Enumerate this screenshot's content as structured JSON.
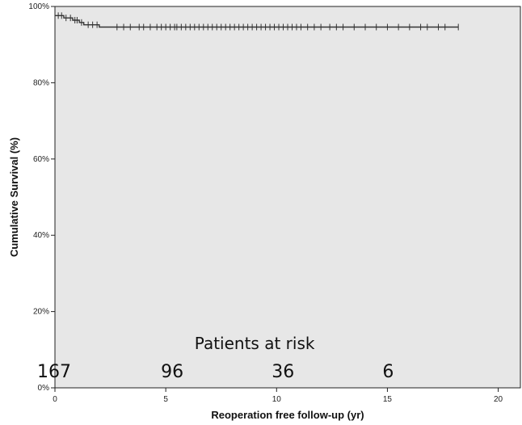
{
  "chart_data": {
    "type": "line",
    "title": "",
    "xlabel": "Reoperation free follow-up (yr)",
    "ylabel": "Cumulative Survival (%)",
    "xlim": [
      0,
      21
    ],
    "ylim": [
      0,
      100
    ],
    "x_ticks": [
      0,
      5,
      10,
      15,
      20
    ],
    "y_ticks": [
      0,
      20,
      40,
      60,
      80,
      100
    ],
    "y_tick_labels": [
      "0%",
      "20%",
      "40%",
      "60%",
      "80%",
      "100%"
    ],
    "grid": false,
    "series": [
      {
        "name": "",
        "step_points": [
          [
            0,
            97.6
          ],
          [
            0.4,
            97.0
          ],
          [
            0.8,
            96.4
          ],
          [
            1.1,
            95.8
          ],
          [
            1.3,
            95.2
          ],
          [
            2.0,
            94.6
          ],
          [
            18.2,
            94.6
          ]
        ],
        "censored_x": [
          0.15,
          0.3,
          0.5,
          0.7,
          0.9,
          1.0,
          1.2,
          1.5,
          1.7,
          1.9,
          2.8,
          3.1,
          3.4,
          3.8,
          4.0,
          4.3,
          4.6,
          4.8,
          5.0,
          5.2,
          5.4,
          5.5,
          5.7,
          5.9,
          6.1,
          6.3,
          6.5,
          6.7,
          6.9,
          7.1,
          7.3,
          7.5,
          7.7,
          7.9,
          8.1,
          8.3,
          8.5,
          8.7,
          8.9,
          9.1,
          9.3,
          9.5,
          9.7,
          9.9,
          10.1,
          10.3,
          10.5,
          10.7,
          10.9,
          11.1,
          11.4,
          11.7,
          12.0,
          12.4,
          12.7,
          13.0,
          13.5,
          14.0,
          14.5,
          15.0,
          15.5,
          16.0,
          16.5,
          16.8,
          17.3,
          17.6,
          18.2
        ]
      }
    ],
    "annotations": {
      "risk_title": "Patients at risk",
      "at_risk": [
        {
          "x": 0,
          "label": "167"
        },
        {
          "x": 5,
          "label": "96"
        },
        {
          "x": 10,
          "label": "36"
        },
        {
          "x": 15,
          "label": "6"
        }
      ]
    }
  }
}
